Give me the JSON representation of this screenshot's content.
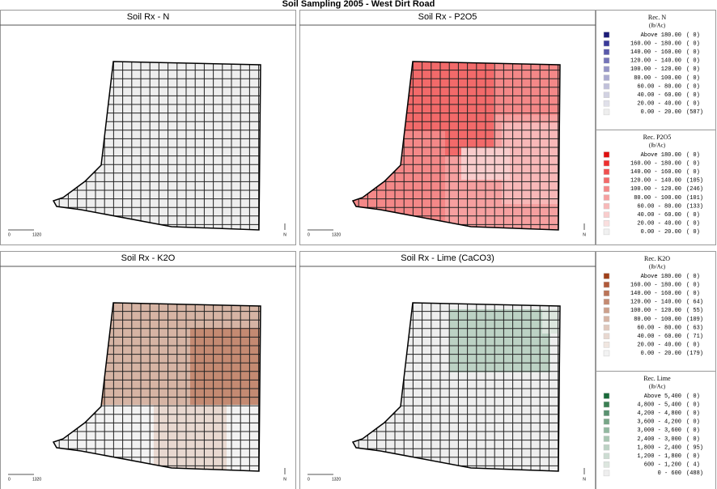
{
  "header": {
    "title": "Soil Sampling 2005 - West Dirt Road"
  },
  "maps": [
    {
      "title": "Soil Rx - N",
      "scale_start": "0",
      "scale_end": "1320",
      "north": "N"
    },
    {
      "title": "Soil Rx - P2O5",
      "scale_start": "0",
      "scale_end": "1320",
      "north": "N"
    },
    {
      "title": "Soil Rx - K2O",
      "scale_start": "0",
      "scale_end": "1320",
      "north": "N"
    },
    {
      "title": "Soil Rx - Lime (CaCO3)",
      "scale_start": "0",
      "scale_end": "1320",
      "north": "N"
    }
  ],
  "legends": [
    {
      "title": "Rec. N",
      "units": "(lb/Ac)",
      "rows": [
        {
          "range": "Above 180.00",
          "count": "( 0)",
          "color": "#1c1c78"
        },
        {
          "range": "160.00 - 180.00",
          "count": "( 0)",
          "color": "#3a3a9a"
        },
        {
          "range": "140.00 - 160.00",
          "count": "( 0)",
          "color": "#5a5aaa"
        },
        {
          "range": "120.00 - 140.00",
          "count": "( 0)",
          "color": "#7474b8"
        },
        {
          "range": "100.00 - 120.00",
          "count": "( 0)",
          "color": "#9494c6"
        },
        {
          "range": "80.00 - 100.00",
          "count": "( 0)",
          "color": "#aaaad0"
        },
        {
          "range": "60.00 - 80.00",
          "count": "( 0)",
          "color": "#c0c0da"
        },
        {
          "range": "40.00 - 60.00",
          "count": "( 0)",
          "color": "#d2d2e2"
        },
        {
          "range": "20.00 - 40.00",
          "count": "( 0)",
          "color": "#e0e0ea"
        },
        {
          "range": "0.00 - 20.00",
          "count": "(587)",
          "color": "#eeeeee"
        }
      ]
    },
    {
      "title": "Rec. P2O5",
      "units": "(lb/Ac)",
      "rows": [
        {
          "range": "Above 180.00",
          "count": "( 0)",
          "color": "#e01010"
        },
        {
          "range": "160.00 - 180.00",
          "count": "( 0)",
          "color": "#ee3030"
        },
        {
          "range": "140.00 - 160.00",
          "count": "( 0)",
          "color": "#f05050"
        },
        {
          "range": "120.00 - 140.00",
          "count": "(105)",
          "color": "#f26a6a"
        },
        {
          "range": "100.00 - 120.00",
          "count": "(246)",
          "color": "#f48888"
        },
        {
          "range": "80.00 - 100.00",
          "count": "(101)",
          "color": "#f6a0a0"
        },
        {
          "range": "60.00 - 80.00",
          "count": "(133)",
          "color": "#f8b8b8"
        },
        {
          "range": "40.00 - 60.00",
          "count": "( 0)",
          "color": "#f9cccc"
        },
        {
          "range": "20.00 - 40.00",
          "count": "( 0)",
          "color": "#fadede"
        },
        {
          "range": "0.00 - 20.00",
          "count": "( 0)",
          "color": "#f0f0f0"
        }
      ]
    },
    {
      "title": "Rec. K2O",
      "units": "(lb/Ac)",
      "rows": [
        {
          "range": "Above 180.00",
          "count": "( 0)",
          "color": "#a0401a"
        },
        {
          "range": "160.00 - 180.00",
          "count": "( 0)",
          "color": "#b05a3a"
        },
        {
          "range": "140.00 - 160.00",
          "count": "( 0)",
          "color": "#bb7458"
        },
        {
          "range": "120.00 - 140.00",
          "count": "( 64)",
          "color": "#c48a72"
        },
        {
          "range": "100.00 - 120.00",
          "count": "( 55)",
          "color": "#cca08c"
        },
        {
          "range": "80.00 - 100.00",
          "count": "(109)",
          "color": "#d6b4a4"
        },
        {
          "range": "60.00 - 80.00",
          "count": "( 63)",
          "color": "#e0c8bc"
        },
        {
          "range": "40.00 - 60.00",
          "count": "( 71)",
          "color": "#e8d8d0"
        },
        {
          "range": "20.00 - 40.00",
          "count": "( 0)",
          "color": "#f0e6e0"
        },
        {
          "range": "0.00 - 20.00",
          "count": "(179)",
          "color": "#f2f2f2"
        }
      ]
    },
    {
      "title": "Rec. Lime",
      "units": "(lb/Ac)",
      "rows": [
        {
          "range": "Above 5,400",
          "count": "( 0)",
          "color": "#1a6a3a"
        },
        {
          "range": "4,800 - 5,400",
          "count": "( 0)",
          "color": "#3a7e52"
        },
        {
          "range": "4,200 - 4,800",
          "count": "( 0)",
          "color": "#5a9270"
        },
        {
          "range": "3,600 - 4,200",
          "count": "( 0)",
          "color": "#78a688"
        },
        {
          "range": "3,000 - 3,600",
          "count": "( 0)",
          "color": "#92b8a0"
        },
        {
          "range": "2,400 - 3,000",
          "count": "( 0)",
          "color": "#a8c6b2"
        },
        {
          "range": "1,800 - 2,400",
          "count": "( 95)",
          "color": "#bcd2c4"
        },
        {
          "range": "1,200 - 1,800",
          "count": "( 0)",
          "color": "#ccdcd2"
        },
        {
          "range": "600 - 1,200",
          "count": "( 4)",
          "color": "#dce6de"
        },
        {
          "range": "0 - 600",
          "count": "(488)",
          "color": "#eeeeee"
        }
      ]
    }
  ]
}
